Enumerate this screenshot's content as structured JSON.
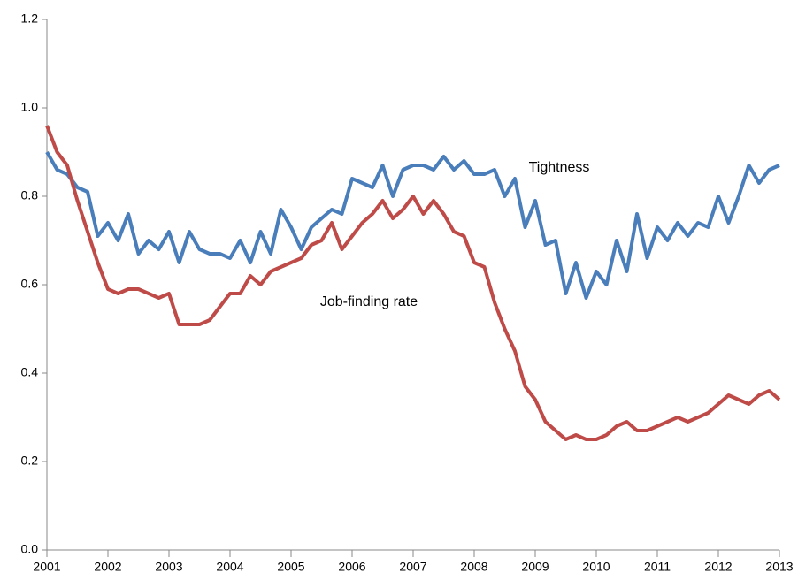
{
  "chart_data": {
    "type": "line",
    "annotations": [
      "Tightness",
      "Job-finding rate"
    ],
    "x": [
      2001,
      2001.167,
      2001.333,
      2001.5,
      2001.667,
      2001.833,
      2002,
      2002.167,
      2002.333,
      2002.5,
      2002.667,
      2002.833,
      2003,
      2003.167,
      2003.333,
      2003.5,
      2003.667,
      2003.833,
      2004,
      2004.167,
      2004.333,
      2004.5,
      2004.667,
      2004.833,
      2005,
      2005.167,
      2005.333,
      2005.5,
      2005.667,
      2005.833,
      2006,
      2006.167,
      2006.333,
      2006.5,
      2006.667,
      2006.833,
      2007,
      2007.167,
      2007.333,
      2007.5,
      2007.667,
      2007.833,
      2008,
      2008.167,
      2008.333,
      2008.5,
      2008.667,
      2008.833,
      2009,
      2009.167,
      2009.333,
      2009.5,
      2009.667,
      2009.833,
      2010,
      2010.167,
      2010.333,
      2010.5,
      2010.667,
      2010.833,
      2011,
      2011.167,
      2011.333,
      2011.5,
      2011.667,
      2011.833,
      2012,
      2012.167,
      2012.333,
      2012.5,
      2012.667,
      2012.833,
      2013
    ],
    "series": [
      {
        "name": "Tightness",
        "color": "#4a7ebb",
        "values": [
          0.9,
          0.86,
          0.85,
          0.82,
          0.81,
          0.71,
          0.74,
          0.7,
          0.76,
          0.67,
          0.7,
          0.68,
          0.72,
          0.65,
          0.72,
          0.68,
          0.67,
          0.67,
          0.66,
          0.7,
          0.65,
          0.72,
          0.67,
          0.77,
          0.73,
          0.68,
          0.73,
          0.75,
          0.77,
          0.76,
          0.84,
          0.83,
          0.82,
          0.87,
          0.8,
          0.86,
          0.87,
          0.87,
          0.86,
          0.89,
          0.86,
          0.88,
          0.85,
          0.85,
          0.86,
          0.8,
          0.84,
          0.73,
          0.79,
          0.69,
          0.7,
          0.58,
          0.65,
          0.57,
          0.63,
          0.6,
          0.7,
          0.63,
          0.76,
          0.66,
          0.73,
          0.7,
          0.74,
          0.71,
          0.74,
          0.73,
          0.8,
          0.74,
          0.8,
          0.87,
          0.83,
          0.86,
          0.87
        ]
      },
      {
        "name": "Job-finding rate",
        "color": "#be4b48",
        "values": [
          0.96,
          0.9,
          0.87,
          0.79,
          0.72,
          0.65,
          0.59,
          0.58,
          0.59,
          0.59,
          0.58,
          0.57,
          0.58,
          0.51,
          0.51,
          0.51,
          0.52,
          0.55,
          0.58,
          0.58,
          0.62,
          0.6,
          0.63,
          0.64,
          0.65,
          0.66,
          0.69,
          0.7,
          0.74,
          0.68,
          0.71,
          0.74,
          0.76,
          0.79,
          0.75,
          0.77,
          0.8,
          0.76,
          0.79,
          0.76,
          0.72,
          0.71,
          0.65,
          0.64,
          0.56,
          0.5,
          0.45,
          0.37,
          0.34,
          0.29,
          0.27,
          0.25,
          0.26,
          0.25,
          0.25,
          0.26,
          0.28,
          0.29,
          0.27,
          0.27,
          0.28,
          0.29,
          0.3,
          0.29,
          0.3,
          0.31,
          0.33,
          0.35,
          0.34,
          0.33,
          0.35,
          0.36,
          0.34
        ]
      }
    ],
    "xlim": [
      2001,
      2013
    ],
    "xticks": [
      2001,
      2002,
      2003,
      2004,
      2005,
      2006,
      2007,
      2008,
      2009,
      2010,
      2011,
      2012,
      2013
    ],
    "ylim": [
      0,
      1.2
    ],
    "yticks": [
      {
        "value": 0,
        "label": "0.0"
      },
      0.2,
      0.4,
      0.6,
      0.8,
      {
        "value": 1,
        "label": "1.0"
      },
      1.2
    ],
    "grid": false
  }
}
